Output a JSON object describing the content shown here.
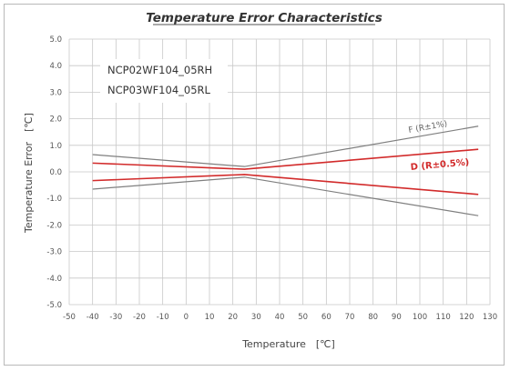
{
  "chart_data": {
    "type": "line",
    "title": "Temperature Error Characteristics",
    "xlabel": "Temperature　[℃]",
    "ylabel": "Temperature Error　[℃]",
    "xlim": [
      -50,
      130
    ],
    "ylim": [
      -5,
      5
    ],
    "xticks": [
      -50,
      -40,
      -30,
      -20,
      -10,
      0,
      10,
      20,
      30,
      40,
      50,
      60,
      70,
      80,
      90,
      100,
      110,
      120,
      130
    ],
    "xtick_labels": [
      "-50",
      "-40",
      "-30",
      "-20",
      "-10",
      "0",
      "10",
      "20",
      "30",
      "40",
      "50",
      "60",
      "70",
      "80",
      "90",
      "100",
      "110",
      "120",
      "130"
    ],
    "yticks": [
      5,
      4,
      3,
      2,
      1,
      0,
      -1,
      -2,
      -3,
      -4,
      -5
    ],
    "ytick_labels": [
      "5.0",
      "4.0",
      "3.0",
      "2.0",
      "1.0",
      "0.0",
      "-1.0",
      "-2.0",
      "-3.0",
      "-4.0",
      "-5.0"
    ],
    "grid": true,
    "models": [
      "NCP02WF104_05RH",
      "NCP03WF104_05RL"
    ],
    "series": [
      {
        "name": "F (R±1%)",
        "color": "#7f7f7f",
        "x": [
          -40,
          25,
          125
        ],
        "y": [
          0.65,
          0.2,
          1.72
        ]
      },
      {
        "name": "",
        "color": "#7f7f7f",
        "x": [
          -40,
          25,
          125
        ],
        "y": [
          -0.65,
          -0.2,
          -1.65
        ]
      },
      {
        "name": "D (R±0.5%)",
        "color": "#d22b2b",
        "x": [
          -40,
          25,
          125
        ],
        "y": [
          0.33,
          0.1,
          0.85
        ]
      },
      {
        "name": "",
        "color": "#d22b2b",
        "x": [
          -40,
          25,
          125
        ],
        "y": [
          -0.33,
          -0.1,
          -0.85
        ]
      }
    ]
  }
}
